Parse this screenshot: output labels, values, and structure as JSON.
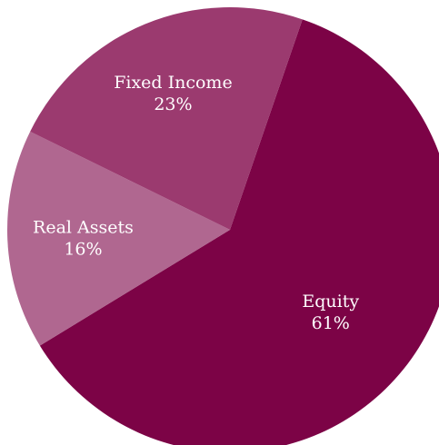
{
  "chart_data": {
    "type": "pie",
    "title": "",
    "slices": [
      {
        "label": "Equity",
        "value": 61,
        "value_label": "61%",
        "color": "#7c0346"
      },
      {
        "label": "Real Assets",
        "value": 16,
        "value_label": "16%",
        "color": "#b06790"
      },
      {
        "label": "Fixed Income",
        "value": 23,
        "value_label": "23%",
        "color": "#9b3a6f"
      }
    ],
    "legend": "none"
  }
}
